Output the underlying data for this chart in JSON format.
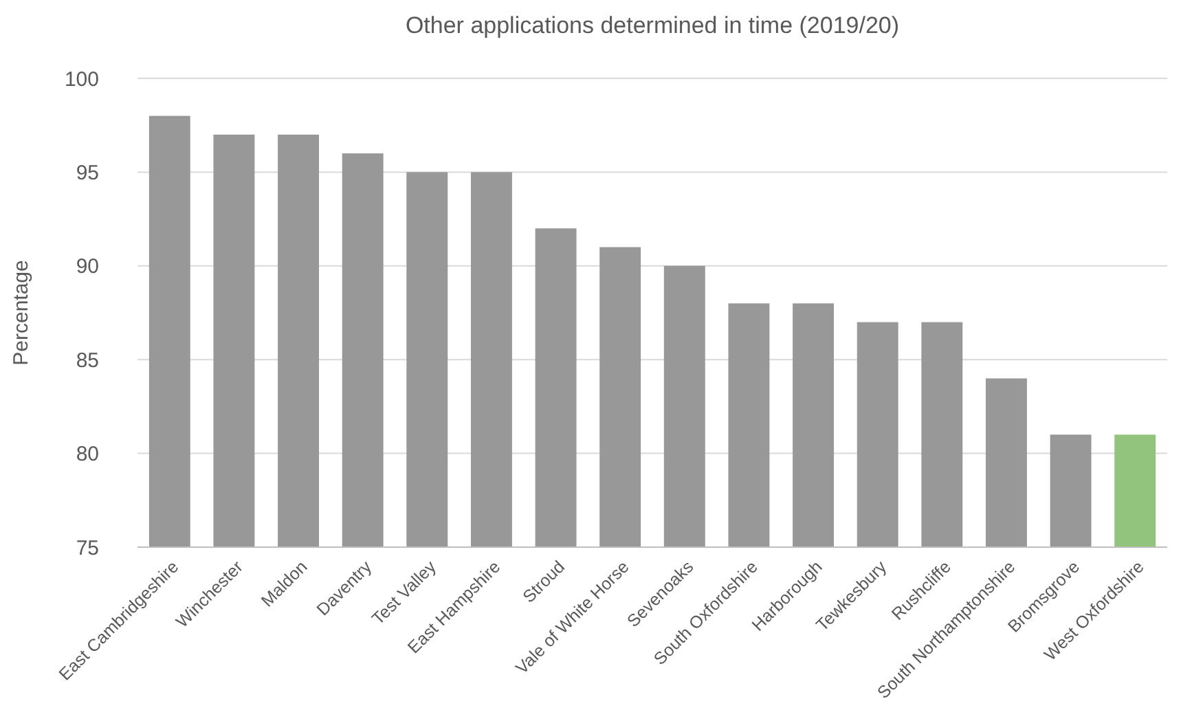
{
  "chart_data": {
    "type": "bar",
    "title": "Other applications determined in time (2019/20)",
    "ylabel": "Percentage",
    "categories": [
      "East Cambridgeshire",
      "Winchester",
      "Maldon",
      "Daventry",
      "Test Valley",
      "East Hampshire",
      "Stroud",
      "Vale of White Horse",
      "Sevenoaks",
      "South Oxfordshire",
      "Harborough",
      "Tewkesbury",
      "Rushcliffe",
      "South Northamptonshire",
      "Bromsgrove",
      "West Oxfordshire"
    ],
    "values": [
      98,
      97,
      97,
      96,
      95,
      95,
      92,
      91,
      90,
      88,
      88,
      87,
      87,
      84,
      81,
      81
    ],
    "colors": [
      "#989898",
      "#989898",
      "#989898",
      "#989898",
      "#989898",
      "#989898",
      "#989898",
      "#989898",
      "#989898",
      "#989898",
      "#989898",
      "#989898",
      "#989898",
      "#989898",
      "#989898",
      "#93c47d"
    ],
    "ylim": [
      75,
      100
    ],
    "yticks": [
      75,
      80,
      85,
      90,
      95,
      100
    ],
    "grid": "y"
  }
}
